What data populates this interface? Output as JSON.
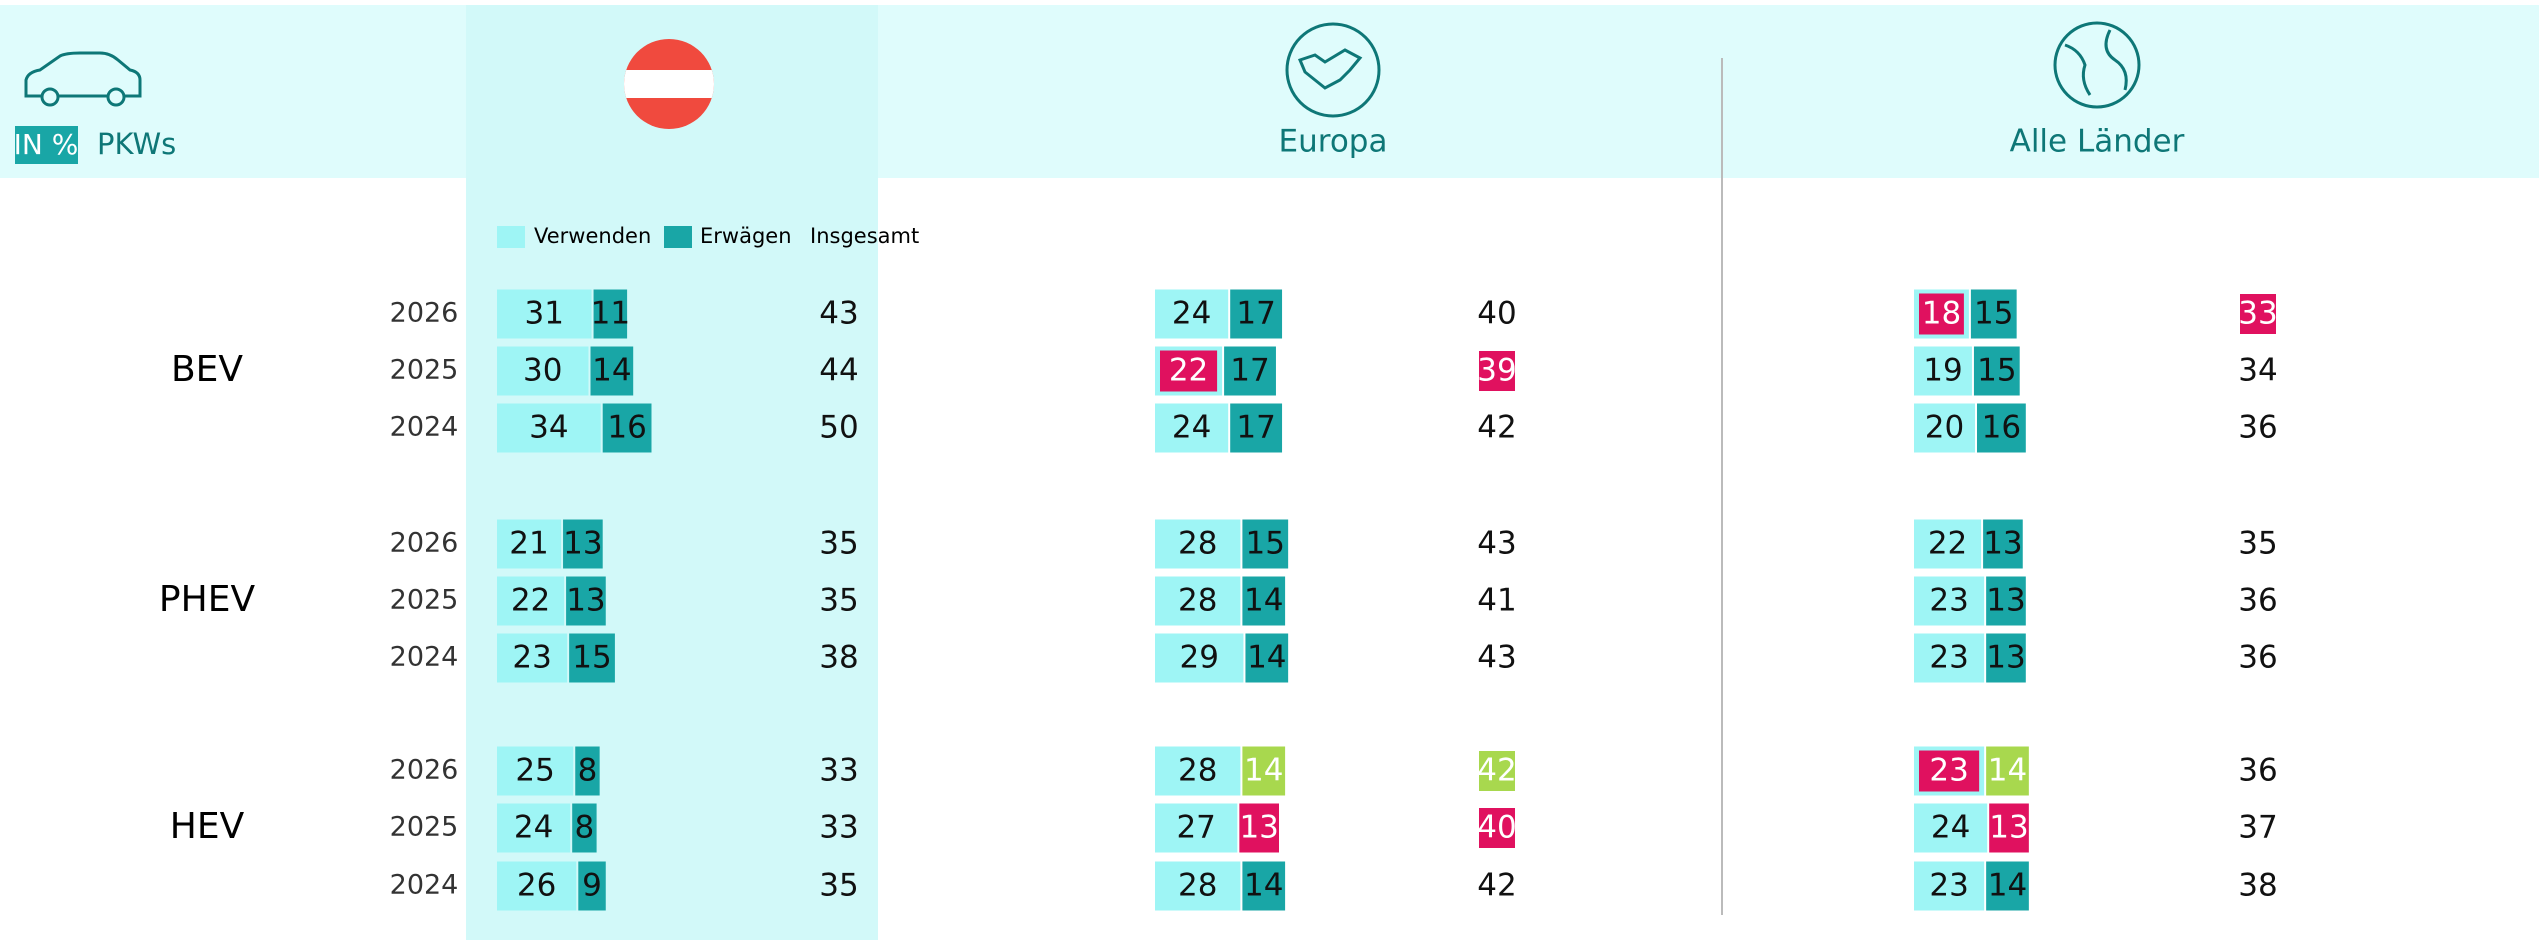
{
  "header": {
    "unit": "IN %",
    "vehicle": "PKWs",
    "regions": [
      "Europa",
      "Alle Länder"
    ]
  },
  "legend": [
    "Verwenden",
    "Erwägen",
    "Insgesamt"
  ],
  "colors": {
    "use": "#9ef5f5",
    "consider": "#19a6a6",
    "down": "#e0115f",
    "up": "#a8d84e"
  },
  "groups": [
    {
      "name": "BEV",
      "rows": [
        {
          "year": "2026",
          "cells": [
            {
              "use": 31,
              "consider": 11,
              "total": 43
            },
            {
              "use": 24,
              "consider": 17,
              "total": 40
            },
            {
              "use": 18,
              "consider": 15,
              "total": 33,
              "use_hl": "down",
              "total_hl": "down"
            }
          ]
        },
        {
          "year": "2025",
          "cells": [
            {
              "use": 30,
              "consider": 14,
              "total": 44
            },
            {
              "use": 22,
              "consider": 17,
              "total": 39,
              "use_hl": "down",
              "total_hl": "down"
            },
            {
              "use": 19,
              "consider": 15,
              "total": 34
            }
          ]
        },
        {
          "year": "2024",
          "cells": [
            {
              "use": 34,
              "consider": 16,
              "total": 50
            },
            {
              "use": 24,
              "consider": 17,
              "total": 42
            },
            {
              "use": 20,
              "consider": 16,
              "total": 36
            }
          ]
        }
      ]
    },
    {
      "name": "PHEV",
      "rows": [
        {
          "year": "2026",
          "cells": [
            {
              "use": 21,
              "consider": 13,
              "total": 35
            },
            {
              "use": 28,
              "consider": 15,
              "total": 43
            },
            {
              "use": 22,
              "consider": 13,
              "total": 35
            }
          ]
        },
        {
          "year": "2025",
          "cells": [
            {
              "use": 22,
              "consider": 13,
              "total": 35
            },
            {
              "use": 28,
              "consider": 14,
              "total": 41
            },
            {
              "use": 23,
              "consider": 13,
              "total": 36
            }
          ]
        },
        {
          "year": "2024",
          "cells": [
            {
              "use": 23,
              "consider": 15,
              "total": 38
            },
            {
              "use": 29,
              "consider": 14,
              "total": 43
            },
            {
              "use": 23,
              "consider": 13,
              "total": 36
            }
          ]
        }
      ]
    },
    {
      "name": "HEV",
      "rows": [
        {
          "year": "2026",
          "cells": [
            {
              "use": 25,
              "consider": 8,
              "total": 33
            },
            {
              "use": 28,
              "consider": 14,
              "total": 42,
              "consider_hl": "up",
              "total_hl": "up"
            },
            {
              "use": 23,
              "consider": 14,
              "total": 36,
              "use_hl": "down",
              "consider_hl": "up"
            }
          ]
        },
        {
          "year": "2025",
          "cells": [
            {
              "use": 24,
              "consider": 8,
              "total": 33
            },
            {
              "use": 27,
              "consider": 13,
              "total": 40,
              "consider_hl": "down",
              "total_hl": "down"
            },
            {
              "use": 24,
              "consider": 13,
              "total": 37,
              "consider_hl": "down"
            }
          ]
        },
        {
          "year": "2024",
          "cells": [
            {
              "use": 26,
              "consider": 9,
              "total": 35
            },
            {
              "use": 28,
              "consider": 14,
              "total": 42
            },
            {
              "use": 23,
              "consider": 14,
              "total": 38
            }
          ]
        }
      ]
    }
  ]
}
